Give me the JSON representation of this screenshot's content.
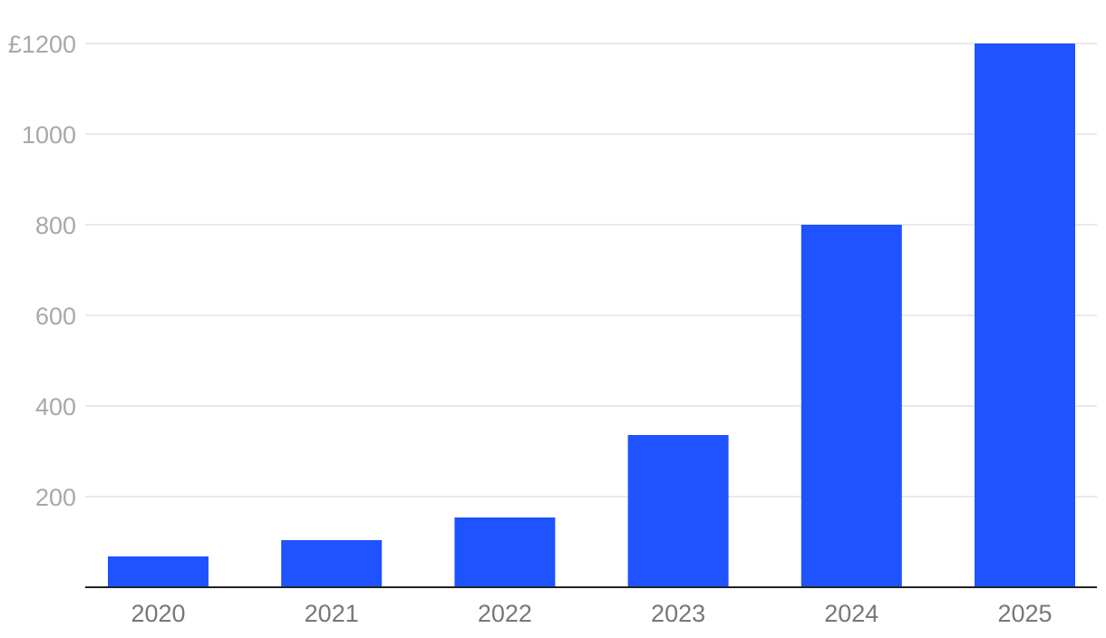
{
  "chart_data": {
    "type": "bar",
    "title": "",
    "xlabel": "",
    "ylabel": "",
    "categories": [
      "2020",
      "2021",
      "2022",
      "2023",
      "2024",
      "2025"
    ],
    "values": [
      68,
      104,
      154,
      336,
      800,
      1200
    ],
    "ylim": [
      0,
      1200
    ],
    "y_ticks": [
      {
        "value": 200,
        "label": "200"
      },
      {
        "value": 400,
        "label": "400"
      },
      {
        "value": 600,
        "label": "600"
      },
      {
        "value": 800,
        "label": "800"
      },
      {
        "value": 1000,
        "label": "1000"
      },
      {
        "value": 1200,
        "label": "£1200"
      }
    ],
    "grid": true,
    "legend": "none",
    "colors": {
      "bar": "#1f53ff",
      "grid": "#e3e3e3",
      "axis": "#222222",
      "y_tick_text": "#a8a8a8",
      "x_tick_text": "#777777"
    }
  }
}
